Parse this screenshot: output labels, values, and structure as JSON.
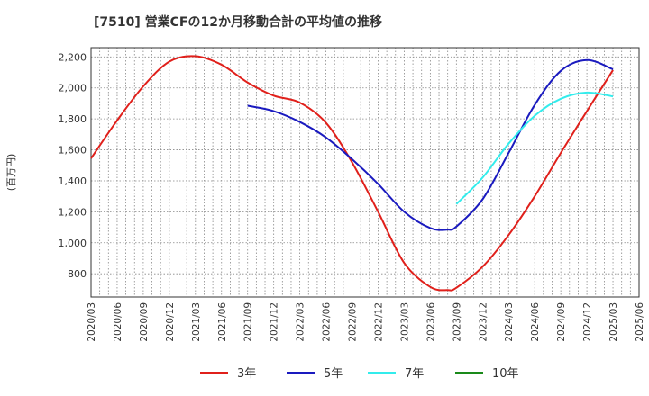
{
  "chart_data": {
    "type": "line",
    "title": "[7510]  営業CFの12か月移動合計の平均値の推移",
    "ylabel": "(百万円)",
    "xlabel": "",
    "ylim": [
      650,
      2260
    ],
    "yticks": [
      800,
      1000,
      1200,
      1400,
      1600,
      1800,
      2000,
      2200
    ],
    "ytick_labels": [
      "800",
      "1,000",
      "1,200",
      "1,400",
      "1,600",
      "1,800",
      "2,000",
      "2,200"
    ],
    "x_ticks": [
      "2020/03",
      "2020/06",
      "2020/09",
      "2020/12",
      "2021/03",
      "2021/06",
      "2021/09",
      "2021/12",
      "2022/03",
      "2022/06",
      "2022/09",
      "2022/12",
      "2023/03",
      "2023/06",
      "2023/09",
      "2023/12",
      "2024/03",
      "2024/06",
      "2024/09",
      "2024/12",
      "2025/03",
      "2025/06"
    ],
    "grid": true,
    "legend_position": "bottom",
    "series": [
      {
        "name": "3年",
        "color": "#e0201b",
        "x": [
          "2020/03",
          "2020/06",
          "2020/09",
          "2020/12",
          "2021/03",
          "2021/06",
          "2021/09",
          "2021/12",
          "2022/03",
          "2022/06",
          "2022/09",
          "2022/12",
          "2023/03",
          "2023/06",
          "2023/08",
          "2023/09",
          "2023/12",
          "2024/03",
          "2024/06",
          "2024/09",
          "2024/12",
          "2025/03"
        ],
        "values": [
          1545,
          1790,
          2010,
          2170,
          2205,
          2150,
          2035,
          1950,
          1905,
          1775,
          1520,
          1200,
          870,
          715,
          695,
          710,
          845,
          1050,
          1300,
          1580,
          1850,
          2115
        ]
      },
      {
        "name": "5年",
        "color": "#1a1abf",
        "x": [
          "2021/09",
          "2021/12",
          "2022/03",
          "2022/06",
          "2022/09",
          "2022/12",
          "2023/03",
          "2023/06",
          "2023/08",
          "2023/09",
          "2023/12",
          "2024/03",
          "2024/06",
          "2024/09",
          "2024/12",
          "2025/03"
        ],
        "values": [
          1885,
          1850,
          1780,
          1680,
          1540,
          1380,
          1200,
          1095,
          1085,
          1105,
          1280,
          1580,
          1890,
          2110,
          2180,
          2120
        ]
      },
      {
        "name": "7年",
        "color": "#33ecec",
        "x": [
          "2023/09",
          "2023/12",
          "2024/03",
          "2024/06",
          "2024/09",
          "2024/12",
          "2025/03"
        ],
        "values": [
          1250,
          1420,
          1640,
          1820,
          1930,
          1970,
          1945
        ]
      },
      {
        "name": "10年",
        "color": "#1a8a1a",
        "x": [],
        "values": []
      }
    ]
  }
}
